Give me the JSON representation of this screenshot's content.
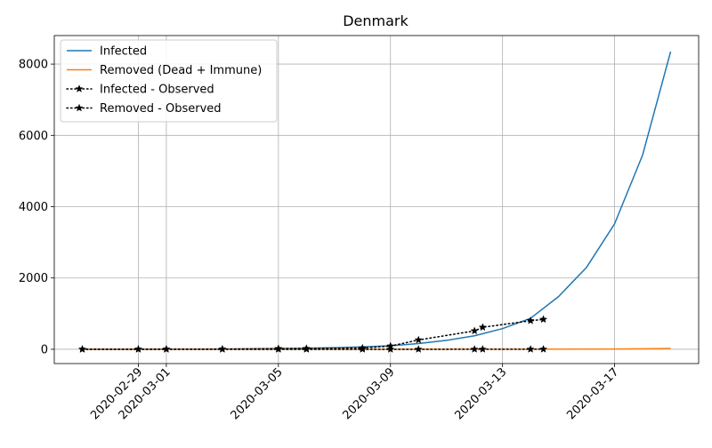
{
  "chart_data": {
    "type": "line",
    "title": "Denmark",
    "xlabel": "",
    "ylabel": "",
    "x_axis_type": "date",
    "xlim": [
      "2020-02-26",
      "2020-03-20"
    ],
    "ylim": [
      -400,
      8800
    ],
    "x_ticks": [
      "2020-02-29",
      "2020-03-01",
      "2020-03-05",
      "2020-03-09",
      "2020-03-13",
      "2020-03-17"
    ],
    "y_ticks": [
      0,
      2000,
      4000,
      6000,
      8000
    ],
    "y_tick_labels": [
      "0",
      "2000",
      "4000",
      "6000",
      "8000"
    ],
    "grid": true,
    "legend_position": "top-left",
    "series": [
      {
        "name": "Infected",
        "color": "#1f77b4",
        "style": "solid",
        "x": [
          "2020-02-27",
          "2020-02-28",
          "2020-02-29",
          "2020-03-01",
          "2020-03-02",
          "2020-03-03",
          "2020-03-04",
          "2020-03-05",
          "2020-03-06",
          "2020-03-07",
          "2020-03-08",
          "2020-03-09",
          "2020-03-10",
          "2020-03-11",
          "2020-03-12",
          "2020-03-13",
          "2020-03-14",
          "2020-03-15",
          "2020-03-16",
          "2020-03-17",
          "2020-03-18",
          "2020-03-19"
        ],
        "values": [
          1,
          2,
          3,
          4,
          6,
          9,
          14,
          20,
          30,
          45,
          68,
          100,
          160,
          250,
          380,
          580,
          870,
          1480,
          2300,
          3520,
          5450,
          8350
        ]
      },
      {
        "name": "Removed (Dead + Immune)",
        "color": "#ff7f0e",
        "style": "solid",
        "x": [
          "2020-02-27",
          "2020-03-05",
          "2020-03-10",
          "2020-03-13",
          "2020-03-15",
          "2020-03-17",
          "2020-03-18",
          "2020-03-19"
        ],
        "values": [
          0,
          0,
          1,
          2,
          4,
          8,
          14,
          24
        ]
      },
      {
        "name": "Infected - Observed",
        "color": "#000000",
        "style": "dotted",
        "marker": "star",
        "x": [
          "2020-02-27",
          "2020-02-29",
          "2020-03-01",
          "2020-03-03",
          "2020-03-05",
          "2020-03-06",
          "2020-03-08",
          "2020-03-09",
          "2020-03-10",
          "2020-03-12",
          "2020-03-12T07",
          "2020-03-14",
          "2020-03-14T11"
        ],
        "values": [
          1,
          3,
          4,
          5,
          20,
          23,
          35,
          90,
          262,
          516,
          617,
          801,
          839
        ]
      },
      {
        "name": "Removed - Observed",
        "color": "#000000",
        "style": "dotted",
        "marker": "star",
        "x": [
          "2020-02-27",
          "2020-02-29",
          "2020-03-01",
          "2020-03-03",
          "2020-03-05",
          "2020-03-06",
          "2020-03-08",
          "2020-03-09",
          "2020-03-10",
          "2020-03-12",
          "2020-03-12T07",
          "2020-03-14",
          "2020-03-14T11"
        ],
        "values": [
          0,
          0,
          0,
          0,
          0,
          0,
          0,
          0,
          0,
          1,
          1,
          1,
          2
        ]
      }
    ]
  }
}
